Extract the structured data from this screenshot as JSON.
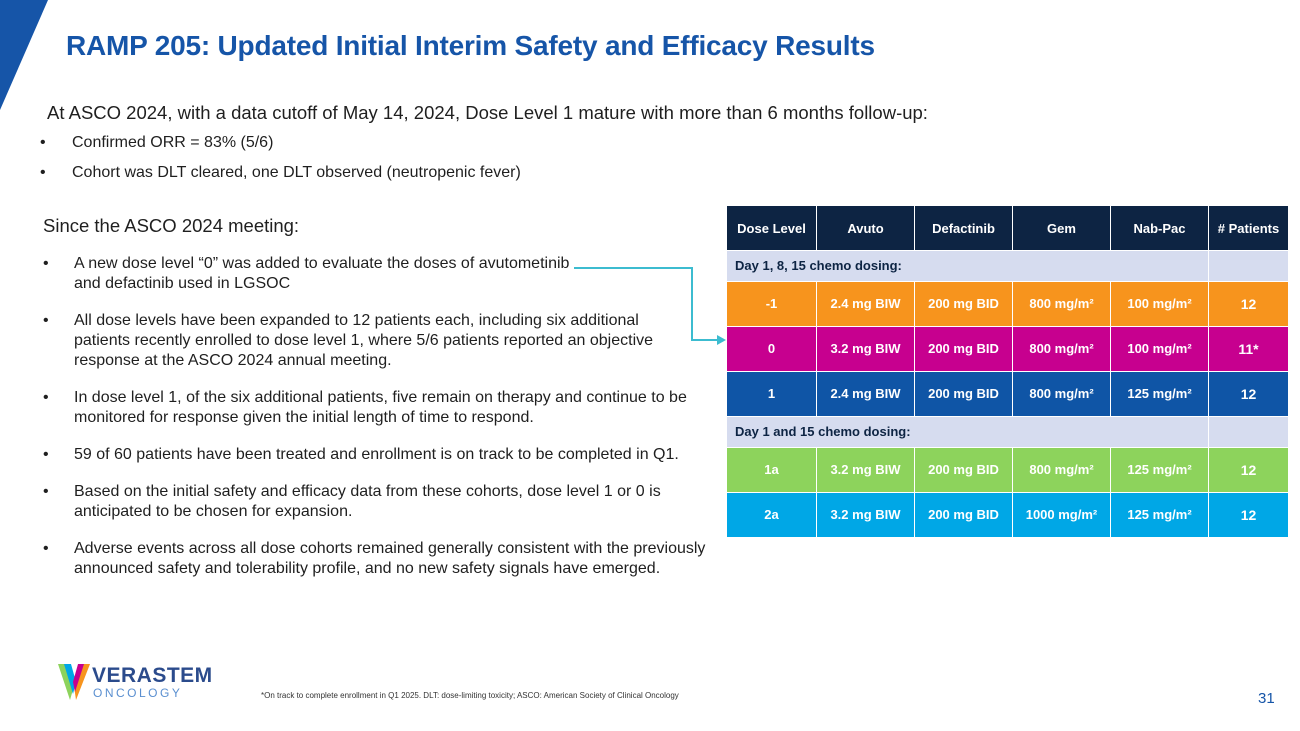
{
  "title": "RAMP 205: Updated Initial Interim Safety and Efficacy Results",
  "intro": "At ASCO 2024, with a data cutoff of May 14, 2024, Dose Level 1 mature with more than 6 months follow-up:",
  "intro_bullets": [
    "Confirmed ORR = 83% (5/6)",
    "Cohort was DLT cleared, one DLT observed (neutropenic fever)"
  ],
  "since_heading": "Since the ASCO 2024 meeting:",
  "since_bullets": [
    "A new dose level “0” was added to evaluate the doses of avutometinib and defactinib used in LGSOC",
    "All dose levels have been expanded to 12 patients each, including six additional patients recently enrolled to dose level 1, where 5/6 patients reported an objective response at the ASCO 2024 annual meeting.",
    "In dose level 1, of the six additional patients, five remain on therapy and continue to be monitored for response given the initial length of time to respond.",
    "59 of 60 patients have been treated and enrollment is on track to be completed in Q1.",
    "Based on the initial safety and efficacy data from these cohorts, dose level 1 or 0 is anticipated to be chosen for expansion.",
    "Adverse events across all dose cohorts remained generally consistent with the previously announced safety and tolerability profile, and no new safety signals have emerged."
  ],
  "table": {
    "headers": [
      "Dose Level",
      "Avuto",
      "Defactinib",
      "Gem",
      "Nab-Pac",
      "# Patients"
    ],
    "section1": "Day 1, 8, 15 chemo dosing:",
    "section2": "Day 1 and 15 chemo dosing:",
    "rows": [
      {
        "level": "-1",
        "avuto": "2.4 mg BIW",
        "defactinib": "200 mg BID",
        "gem": "800 mg/m²",
        "nabpac": "100 mg/m²",
        "patients": "12",
        "color": "#f7941d"
      },
      {
        "level": "0",
        "avuto": "3.2 mg BIW",
        "defactinib": "200 mg BID",
        "gem": "800 mg/m²",
        "nabpac": "100 mg/m²",
        "patients": "11*",
        "color": "#c7008f"
      },
      {
        "level": "1",
        "avuto": "2.4 mg BIW",
        "defactinib": "200 mg BID",
        "gem": "800 mg/m²",
        "nabpac": "125 mg/m²",
        "patients": "12",
        "color": "#0f55a6"
      },
      {
        "level": "1a",
        "avuto": "3.2 mg BIW",
        "defactinib": "200 mg BID",
        "gem": "800 mg/m²",
        "nabpac": "125 mg/m²",
        "patients": "12",
        "color": "#8dd35c"
      },
      {
        "level": "2a",
        "avuto": "3.2 mg BIW",
        "defactinib": "200 mg BID",
        "gem": "1000 mg/m²",
        "nabpac": "125 mg/m²",
        "patients": "12",
        "color": "#00a7e6"
      }
    ]
  },
  "logo": {
    "main": "VERASTEM",
    "sub": "ONCOLOGY"
  },
  "footnote": "*On track to complete enrollment in Q1 2025. DLT: dose-limiting toxicity; ASCO: American Society of Clinical Oncology",
  "page_number": "31",
  "colors": {
    "title": "#1655a8",
    "header_bg": "#0d2443",
    "section_bg": "#d6dcef",
    "arrow": "#3cbcd0"
  }
}
